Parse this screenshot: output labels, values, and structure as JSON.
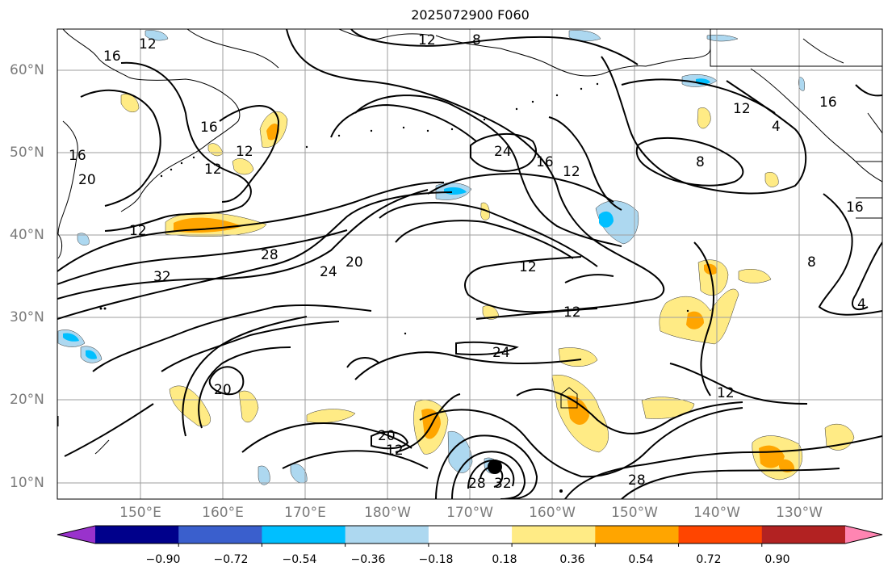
{
  "title": "2025072900 F060",
  "lat_labels": [
    "60°N",
    "50°N",
    "40°N",
    "30°N",
    "20°N",
    "10°N"
  ],
  "lon_labels": [
    "150°E",
    "160°E",
    "170°E",
    "180°W",
    "170°W",
    "160°W",
    "150°W",
    "140°W",
    "130°W"
  ],
  "contour_labels": [
    "12",
    "16",
    "20",
    "24",
    "28",
    "32",
    "8",
    "4"
  ],
  "colorbar": {
    "ticks": [
      "−0.90",
      "−0.72",
      "−0.54",
      "−0.36",
      "−0.18",
      "0.18",
      "0.36",
      "0.54",
      "0.72",
      "0.90"
    ],
    "colors": [
      "#9932CC",
      "#00008B",
      "#3A5FCD",
      "#00BFFF",
      "#ADD8F0",
      "#FFFFFF",
      "#FFEB85",
      "#FFA500",
      "#FF4500",
      "#B22222",
      "#FF85B2"
    ]
  }
}
